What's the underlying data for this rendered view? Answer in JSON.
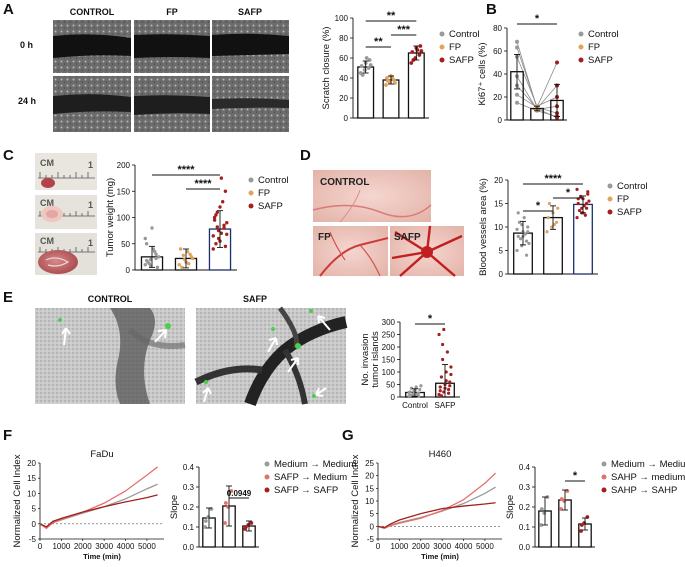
{
  "colors": {
    "control": "#999999",
    "fp": "#e0a35f",
    "safp": "#a3201f",
    "medium": "#9a9a9a",
    "mid_red": "#e5706c"
  },
  "panels": {
    "A": {
      "label": "A",
      "photo_cols": [
        "CONTROL",
        "FP",
        "SAFP"
      ],
      "photo_rows": [
        "0 h",
        "24 h"
      ],
      "chart": {
        "type": "bar",
        "categories": [
          "Control",
          "FP",
          "SAFP"
        ],
        "values": [
          51,
          38,
          65
        ],
        "errors": [
          6,
          4,
          7
        ],
        "points": [
          [
            45,
            48,
            50,
            52,
            55,
            58,
            43,
            60,
            53
          ],
          [
            33,
            36,
            38,
            40,
            42,
            35,
            37,
            41
          ],
          [
            55,
            60,
            63,
            66,
            70,
            72,
            58,
            68,
            67
          ]
        ],
        "ylabel": "Scratch closure (%)",
        "ylim": [
          0,
          100
        ],
        "yticks": [
          0,
          20,
          40,
          60,
          80,
          100
        ],
        "significance": [
          {
            "pair": [
              0,
              2
            ],
            "label": "**"
          },
          {
            "pair": [
              0,
              1
            ],
            "label": "**"
          },
          {
            "pair": [
              1,
              2
            ],
            "label": "***"
          }
        ],
        "legend": [
          "Control",
          "FP",
          "SAFP"
        ]
      }
    },
    "B": {
      "label": "B",
      "chart": {
        "type": "bar",
        "categories": [
          "Control",
          "FP",
          "SAFP"
        ],
        "values": [
          42,
          10,
          17
        ],
        "errors": [
          15,
          2,
          14
        ],
        "paired_lines": [
          [
            68,
            10,
            30
          ],
          [
            63,
            11,
            6
          ],
          [
            55,
            12,
            20
          ],
          [
            38,
            9,
            12
          ],
          [
            30,
            10,
            2
          ],
          [
            22,
            11,
            50
          ],
          [
            15,
            8,
            3
          ]
        ],
        "ylabel": "Ki67⁺ cells (%)",
        "ylim": [
          0,
          80
        ],
        "yticks": [
          0,
          20,
          40,
          60,
          80
        ],
        "significance": [
          {
            "pair": [
              0,
              2
            ],
            "label": "*"
          }
        ],
        "legend": [
          "Control",
          "FP",
          "SAFP"
        ]
      }
    },
    "C": {
      "label": "C",
      "ruler_text": [
        "CM",
        "1"
      ],
      "chart": {
        "type": "bar",
        "categories": [
          "Control",
          "FP",
          "SAFP"
        ],
        "values": [
          25,
          22,
          78
        ],
        "errors": [
          20,
          18,
          35
        ],
        "points": [
          [
            10,
            20,
            30,
            50,
            80,
            5,
            15,
            40,
            25,
            12,
            35,
            60,
            8,
            22,
            18
          ],
          [
            10,
            20,
            30,
            40,
            15,
            25,
            5,
            35,
            22,
            28,
            12
          ],
          [
            40,
            60,
            80,
            100,
            120,
            150,
            50,
            70,
            90,
            110,
            130,
            65,
            75,
            85,
            95,
            55,
            45,
            105,
            175,
            68,
            82
          ]
        ],
        "ylabel": "Tumor weight (mg)",
        "ylim": [
          0,
          200
        ],
        "yticks": [
          0,
          50,
          100,
          150,
          200
        ],
        "significance": [
          {
            "pair": [
              0,
              2
            ],
            "label": "****"
          },
          {
            "pair": [
              1,
              2
            ],
            "label": "****"
          }
        ],
        "legend": [
          "Control",
          "FP",
          "SAFP"
        ]
      }
    },
    "D": {
      "label": "D",
      "photo_labels": [
        "CONTROL",
        "FP",
        "SAFP"
      ],
      "chart": {
        "type": "bar",
        "categories": [
          "Control",
          "FP",
          "SAFP"
        ],
        "values": [
          8.7,
          12,
          14.8
        ],
        "errors": [
          2.5,
          2.5,
          1.8
        ],
        "points": [
          [
            5,
            6,
            7,
            8,
            9,
            10,
            11,
            12,
            6.5,
            7.5,
            8.5,
            9.5,
            10.5,
            4,
            13,
            8,
            9
          ],
          [
            9,
            10,
            11,
            12,
            13,
            14,
            15,
            10.5
          ],
          [
            12,
            13,
            14,
            15,
            16,
            17,
            13.5,
            14.5,
            15.5,
            16.5,
            12.5,
            18,
            14,
            15,
            16,
            13,
            17.5
          ]
        ],
        "ylabel": "Blood vessels area (%)",
        "ylim": [
          0,
          20
        ],
        "yticks": [
          0,
          5,
          10,
          15,
          20
        ],
        "significance": [
          {
            "pair": [
              0,
              2
            ],
            "label": "****"
          },
          {
            "pair": [
              0,
              1
            ],
            "label": "*"
          },
          {
            "pair": [
              1,
              2
            ],
            "label": "*"
          }
        ],
        "legend": [
          "Control",
          "FP",
          "SAFP"
        ]
      }
    },
    "E": {
      "label": "E",
      "photo_labels": [
        "CONTROL",
        "SAFP"
      ],
      "chart": {
        "type": "bar",
        "categories": [
          "Control",
          "SAFP"
        ],
        "values": [
          18,
          55
        ],
        "errors": [
          15,
          75
        ],
        "points": [
          [
            5,
            10,
            15,
            20,
            25,
            30,
            35,
            40,
            45,
            8,
            12,
            18,
            22,
            3,
            6,
            28
          ],
          [
            10,
            20,
            30,
            40,
            50,
            60,
            80,
            100,
            120,
            150,
            180,
            250,
            270,
            15,
            25,
            35,
            45,
            5,
            65,
            90,
            210
          ]
        ],
        "ylabel": "No. invasion tumor islands",
        "ylim": [
          0,
          300
        ],
        "yticks": [
          0,
          50,
          100,
          150,
          200,
          250,
          300
        ],
        "significance": [
          {
            "pair": [
              0,
              1
            ],
            "label": "*"
          }
        ]
      }
    },
    "F": {
      "label": "F",
      "line_chart": {
        "type": "line",
        "title": "FaDu",
        "xlabel": "Time (min)",
        "ylabel": "Normalized Cell Index",
        "xlim": [
          0,
          5800
        ],
        "ylim": [
          -5,
          20
        ],
        "xticks": [
          0,
          1000,
          2000,
          3000,
          4000,
          5000
        ],
        "yticks": [
          -5,
          0,
          5,
          10,
          15,
          20
        ],
        "series": [
          {
            "name": "Medium → Medium",
            "x": [
              0,
              300,
              600,
              1000,
              2000,
              3000,
              4000,
              5000,
              5500
            ],
            "y": [
              0,
              -1.2,
              0.3,
              1.3,
              3.5,
              5.6,
              8.2,
              11.5,
              13.0
            ]
          },
          {
            "name": "SAFP → Medium",
            "x": [
              0,
              300,
              600,
              1000,
              2000,
              3000,
              4000,
              5000,
              5500
            ],
            "y": [
              0,
              -1.5,
              0.4,
              1.5,
              3.8,
              6.8,
              10.8,
              16.0,
              18.7
            ]
          },
          {
            "name": "SAFP → SAFP",
            "x": [
              0,
              300,
              600,
              1000,
              2000,
              3000,
              4000,
              5000,
              5500
            ],
            "y": [
              0,
              -1.0,
              0.8,
              1.8,
              3.9,
              5.6,
              7.2,
              8.6,
              9.5
            ]
          }
        ]
      },
      "bar_chart": {
        "type": "bar",
        "categories": [
          "Medium → Medium",
          "SAFP → Medium",
          "SAFP → SAFP"
        ],
        "values": [
          0.145,
          0.205,
          0.105
        ],
        "errors": [
          0.05,
          0.1,
          0.025
        ],
        "points": [
          [
            0.1,
            0.15,
            0.19,
            0.13
          ],
          [
            0.12,
            0.2,
            0.28,
            0.22
          ],
          [
            0.09,
            0.11,
            0.12,
            0.1
          ]
        ],
        "ylabel": "Slope",
        "ylim": [
          0,
          0.4
        ],
        "yticks": [
          0.0,
          0.1,
          0.2,
          0.3,
          0.4
        ],
        "significance": [
          {
            "pair": [
              1,
              2
            ],
            "label": "0.0949"
          }
        ],
        "legend": [
          "Medium → Medium",
          "SAFP → Medium",
          "SAFP → SAFP"
        ]
      }
    },
    "G": {
      "label": "G",
      "line_chart": {
        "type": "line",
        "title": "H460",
        "xlabel": "Time (min)",
        "ylabel": "Normalized Cell Index",
        "xlim": [
          0,
          5800
        ],
        "ylim": [
          -5,
          25
        ],
        "xticks": [
          0,
          1000,
          2000,
          3000,
          4000,
          5000
        ],
        "yticks": [
          -5,
          0,
          5,
          10,
          15,
          20,
          25
        ],
        "series": [
          {
            "name": "Medium → Medium",
            "x": [
              0,
              300,
              600,
              1000,
              2000,
              3000,
              4000,
              5000,
              5500
            ],
            "y": [
              0,
              -0.8,
              0.5,
              1.5,
              3.5,
              6.0,
              9.0,
              13.0,
              15.5
            ]
          },
          {
            "name": "SAHP → medium",
            "x": [
              0,
              300,
              600,
              1000,
              2000,
              3000,
              4000,
              5000,
              5500
            ],
            "y": [
              0,
              -0.8,
              0.3,
              1.2,
              3.2,
              6.2,
              10.5,
              17.0,
              21.0
            ]
          },
          {
            "name": "SAHP → SAHP",
            "x": [
              0,
              300,
              600,
              1000,
              2000,
              3000,
              4000,
              5000,
              5500
            ],
            "y": [
              0,
              -0.5,
              1.0,
              2.5,
              5.0,
              7.0,
              8.0,
              8.8,
              9.3
            ]
          }
        ]
      },
      "bar_chart": {
        "type": "bar",
        "categories": [
          "Medium → Medium",
          "SAHP → medium",
          "SAHP → SAHP"
        ],
        "values": [
          0.18,
          0.235,
          0.115
        ],
        "errors": [
          0.07,
          0.05,
          0.03
        ],
        "points": [
          [
            0.11,
            0.17,
            0.25,
            0.19
          ],
          [
            0.19,
            0.23,
            0.28,
            0.24
          ],
          [
            0.08,
            0.12,
            0.15,
            0.11
          ]
        ],
        "ylabel": "Slope",
        "ylim": [
          0,
          0.4
        ],
        "yticks": [
          0.0,
          0.1,
          0.2,
          0.3,
          0.4
        ],
        "significance": [
          {
            "pair": [
              1,
              2
            ],
            "label": "*"
          }
        ],
        "legend": [
          "Medium → Medium",
          "SAHP → medium",
          "SAHP → SAHP"
        ]
      }
    }
  }
}
